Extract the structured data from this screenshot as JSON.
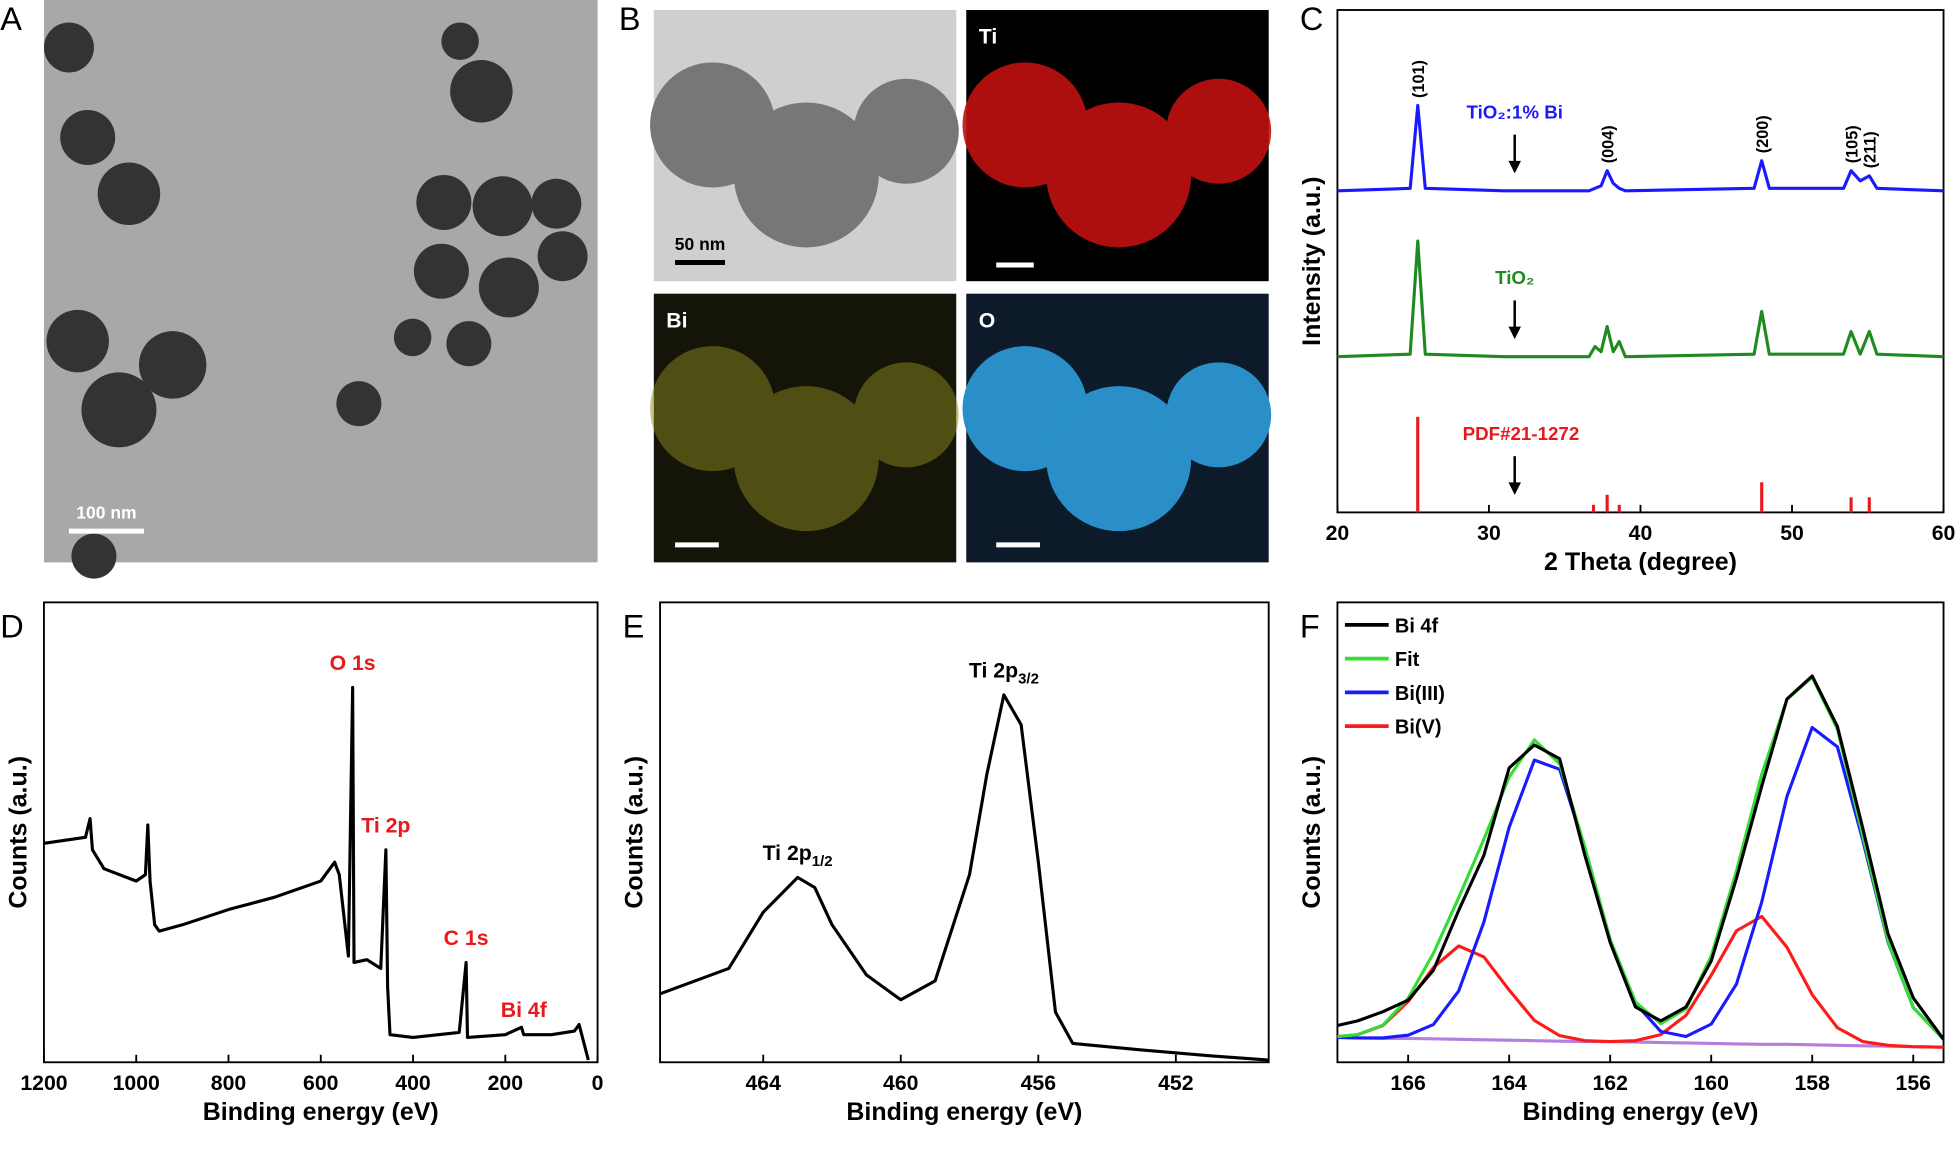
{
  "panel_labels": [
    "A",
    "B",
    "C",
    "D",
    "E",
    "F"
  ],
  "tem": {
    "scale_bar": "100 nm"
  },
  "eds": {
    "scale_bar": "50 nm",
    "maps": [
      "Ti",
      "Bi",
      "O"
    ]
  },
  "chart_data": [
    {
      "type": "line",
      "xlabel": "2 Theta (degree)",
      "ylabel": "Intensity (a.u.)",
      "xlim": [
        20,
        60
      ],
      "xticks": [
        20,
        30,
        40,
        50,
        60
      ],
      "ylim": [
        0,
        100
      ],
      "x": [
        20,
        24.8,
        25.3,
        25.8,
        31,
        36.6,
        37.0,
        37.4,
        37.8,
        38.2,
        38.6,
        39,
        47.5,
        48,
        48.5,
        53.4,
        53.9,
        54.5,
        55.1,
        55.6,
        60
      ],
      "series": [
        {
          "name": "TiO₂:1% Bi",
          "color": "#1a1aff",
          "values": [
            64,
            64.5,
            81,
            64.5,
            64,
            64,
            64.5,
            65,
            68,
            65.5,
            64.5,
            64,
            64.5,
            70,
            64.5,
            64.5,
            68,
            66,
            67,
            64.5,
            64
          ]
        },
        {
          "name": "TiO₂",
          "color": "#1f8a1f",
          "values": [
            31,
            31.5,
            54,
            31.5,
            31,
            31,
            33,
            32,
            37,
            32,
            34,
            31,
            31.5,
            40,
            31.5,
            31.5,
            36,
            31.5,
            36,
            31.5,
            31
          ]
        }
      ],
      "sticks": {
        "name": "PDF#21-1272",
        "color": "#e8191c",
        "x": [
          25.3,
          36.9,
          37.8,
          38.6,
          48.0,
          53.9,
          55.1
        ],
        "values": [
          19,
          1.5,
          3.5,
          1.5,
          6,
          3,
          3
        ]
      },
      "peak_labels": [
        {
          "label": "(101)",
          "x": 25.3
        },
        {
          "label": "(004)",
          "x": 37.8
        },
        {
          "label": "(200)",
          "x": 48
        },
        {
          "label": "(105)",
          "x": 53.9
        },
        {
          "label": "(211)",
          "x": 55.1
        }
      ],
      "arrow_x": 31.7
    },
    {
      "type": "line",
      "xlabel": "Binding energy (eV)",
      "ylabel": "Counts (a.u.)",
      "xlim": [
        1200,
        0
      ],
      "xticks": [
        1200,
        1000,
        800,
        600,
        400,
        200,
        0
      ],
      "ylim": [
        0,
        100
      ],
      "x": [
        1200,
        1110,
        1100,
        1095,
        1070,
        1000,
        980,
        975,
        970,
        960,
        950,
        900,
        800,
        700,
        600,
        570,
        560,
        540,
        531,
        528,
        500,
        470,
        459,
        455,
        450,
        400,
        300,
        285,
        282,
        200,
        165,
        160,
        100,
        50,
        40,
        20
      ],
      "series": [
        {
          "color": "#000000",
          "values": [
            47.6,
            48.9,
            53.0,
            46.2,
            42.1,
            39.4,
            40.8,
            51.6,
            39.4,
            29.9,
            28.5,
            29.9,
            33.2,
            35.9,
            39.4,
            43.5,
            40.8,
            23.1,
            81.5,
            21.7,
            22.3,
            20.4,
            46.2,
            16.3,
            6.0,
            5.4,
            6.5,
            21.7,
            5.4,
            6.0,
            7.6,
            6.0,
            6.0,
            6.8,
            8.2,
            0.5
          ]
        }
      ],
      "peak_labels": [
        {
          "label": "O 1s",
          "x": 531
        },
        {
          "label": "Ti 2p",
          "x": 459
        },
        {
          "label": "C 1s",
          "x": 285
        },
        {
          "label": "Bi 4f",
          "x": 160
        }
      ],
      "label_color": "#e8191c"
    },
    {
      "type": "line",
      "xlabel": "Binding energy (eV)",
      "ylabel": "Counts (a.u.)",
      "xlim": [
        467,
        449.3
      ],
      "xticks": [
        464,
        460,
        456,
        452
      ],
      "ylim": [
        0,
        100
      ],
      "x": [
        467,
        465,
        464,
        463,
        462.5,
        462,
        461,
        460,
        459,
        458,
        457.5,
        457,
        456.5,
        456,
        455.5,
        455,
        453,
        451,
        449.3
      ],
      "series": [
        {
          "color": "#000000",
          "values": [
            14.9,
            20.4,
            32.6,
            40.2,
            38.0,
            29.9,
            19.0,
            13.6,
            17.7,
            40.8,
            62.5,
            79.9,
            73.4,
            43.5,
            10.9,
            4.1,
            2.7,
            1.4,
            0.5
          ]
        }
      ],
      "peak_labels": [
        {
          "label": "Ti 2p",
          "sub": "1/2",
          "x": 463
        },
        {
          "label": "Ti 2p",
          "sub": "3/2",
          "x": 457
        }
      ],
      "label_color": "#000000"
    },
    {
      "type": "line",
      "xlabel": "Binding energy (eV)",
      "ylabel": "Counts (a.u.)",
      "xlim": [
        167.4,
        155.4
      ],
      "xticks": [
        166,
        164,
        162,
        160,
        158,
        156
      ],
      "ylim": [
        0,
        100
      ],
      "x": [
        167.4,
        167,
        166.5,
        166,
        165.5,
        165,
        164.5,
        164,
        163.5,
        163,
        162.5,
        162,
        161.5,
        161,
        160.5,
        160,
        159.5,
        159,
        158.5,
        158,
        157.5,
        157,
        156.5,
        156,
        155.4
      ],
      "series": [
        {
          "color": "#b57edc",
          "values": [
            5.4,
            5.3,
            5.2,
            5.2,
            5.1,
            5.0,
            4.9,
            4.8,
            4.7,
            4.6,
            4.5,
            4.5,
            4.4,
            4.3,
            4.2,
            4.1,
            4.0,
            3.9,
            3.9,
            3.8,
            3.7,
            3.6,
            3.5,
            3.4,
            3.3
          ]
        },
        {
          "name": "Bi(V)",
          "color": "#ff1a1a",
          "values": [
            5.6,
            6.0,
            8.0,
            13.2,
            20.6,
            25.3,
            22.9,
            15.7,
            9.1,
            5.8,
            4.7,
            4.5,
            4.7,
            6.0,
            10.2,
            18.9,
            28.6,
            31.7,
            25.0,
            14.7,
            7.5,
            4.5,
            3.7,
            3.4,
            3.3
          ]
        },
        {
          "name": "Bi(III)",
          "color": "#1a1aff",
          "values": [
            5.4,
            5.3,
            5.3,
            5.9,
            8.2,
            15.5,
            30.5,
            51.1,
            65.7,
            63.7,
            46.6,
            26.6,
            12.8,
            6.7,
            5.6,
            8.3,
            17.0,
            34.8,
            57.8,
            72.8,
            68.6,
            48.4,
            26.2,
            11.9,
            5.0
          ]
        },
        {
          "name": "Fit",
          "color": "#33dd33",
          "values": [
            5.6,
            6.0,
            8.1,
            13.9,
            23.7,
            35.8,
            48.5,
            62.0,
            70.1,
            64.9,
            46.8,
            26.6,
            13.1,
            8.4,
            11.6,
            23.1,
            41.6,
            62.6,
            78.9,
            83.7,
            72.4,
            49.3,
            26.4,
            11.9,
            5.0
          ]
        },
        {
          "name": "Bi 4f",
          "color": "#000000",
          "values": [
            8,
            9,
            11,
            13.5,
            20,
            33,
            45,
            64,
            69,
            66,
            45,
            26,
            12,
            9,
            12,
            22,
            40,
            60,
            79,
            84,
            73,
            51,
            28,
            14,
            5
          ]
        }
      ],
      "legend": "upper left"
    }
  ]
}
